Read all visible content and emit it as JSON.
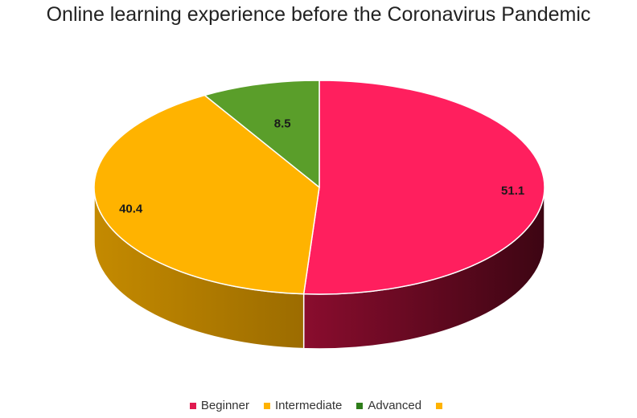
{
  "chart_data": {
    "type": "pie",
    "title": "Online learning experience before the Coronavirus Pandemic",
    "slices": [
      {
        "name": "Beginner",
        "value": 51.1,
        "label": "51.1",
        "color": "#ff1f5e",
        "side_color": "#6e0a24"
      },
      {
        "name": "Intermediate",
        "value": 40.4,
        "label": "40.4",
        "color": "#ffb300",
        "side_color": "#b07c00"
      },
      {
        "name": "Advanced",
        "value": 8.5,
        "label": "8.5",
        "color": "#5a9e2a",
        "side_color": "#3a6a1a"
      }
    ],
    "legend": {
      "position": "bottom",
      "entries": [
        {
          "name": "Beginner",
          "color": "#e0194f"
        },
        {
          "name": "Intermediate",
          "color": "#ffb300"
        },
        {
          "name": "Advanced",
          "color": "#2e7d1a"
        },
        {
          "name": "",
          "color": "#ffb300"
        }
      ]
    }
  }
}
